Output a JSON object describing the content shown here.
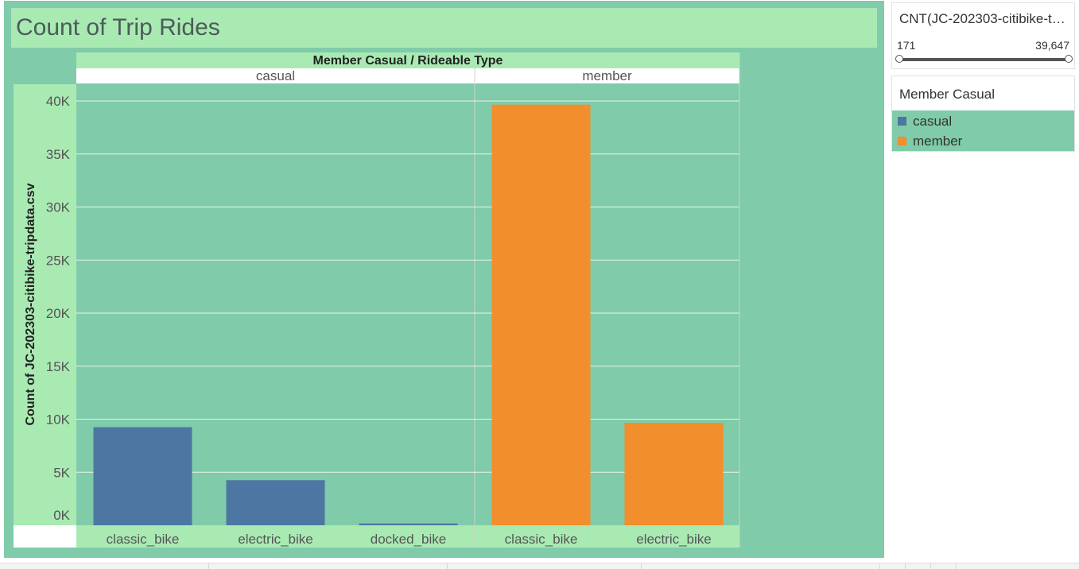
{
  "title": "Count of Trip Rides",
  "colors": {
    "background": "#80cba9",
    "header": "#a9eab3",
    "casual": "#4e76a3",
    "member": "#f28e2b"
  },
  "filter": {
    "title": "CNT(JC-202303-citibike-tripdata.csv)",
    "min_label": "171",
    "max_label": "39,647"
  },
  "legend": {
    "title": "Member Casual",
    "items": [
      {
        "label": "casual",
        "color": "#4e76a3"
      },
      {
        "label": "member",
        "color": "#f28e2b"
      }
    ]
  },
  "chart_data": {
    "type": "bar",
    "title": "Count of Trip Rides",
    "header_label": "Member Casual  /  Rideable Type",
    "ylabel": "Count of JC-202303-citibike-tripdata.csv",
    "ylim": [
      0,
      40000
    ],
    "yticks": [
      0,
      5000,
      10000,
      15000,
      20000,
      25000,
      30000,
      35000,
      40000
    ],
    "ytick_labels": [
      "0K",
      "5K",
      "10K",
      "15K",
      "20K",
      "25K",
      "30K",
      "35K",
      "40K"
    ],
    "panels": [
      {
        "name": "casual",
        "color": "#4e76a3",
        "categories": [
          "classic_bike",
          "electric_bike",
          "docked_bike"
        ],
        "values": [
          9250,
          4250,
          171
        ]
      },
      {
        "name": "member",
        "color": "#f28e2b",
        "categories": [
          "classic_bike",
          "electric_bike"
        ],
        "values": [
          39647,
          9650
        ]
      }
    ]
  }
}
